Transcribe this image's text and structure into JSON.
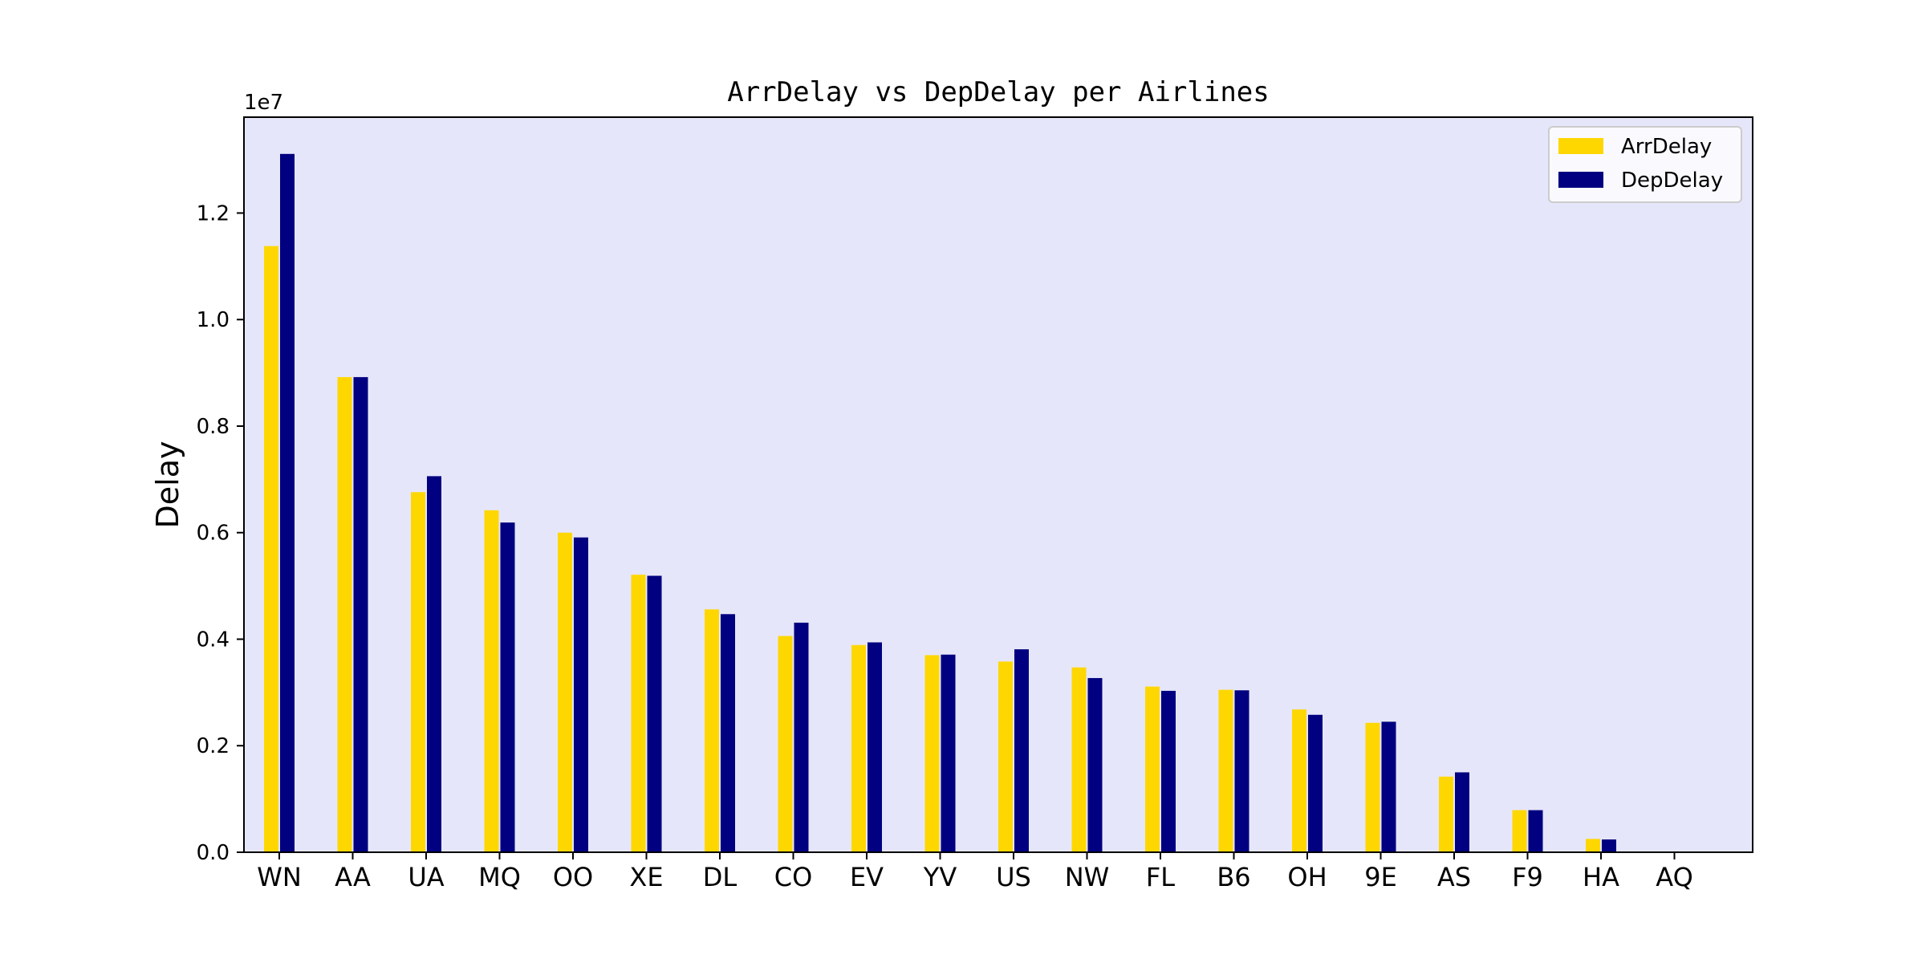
{
  "chart_data": {
    "type": "bar",
    "title": "ArrDelay vs DepDelay per Airlines",
    "xlabel": "",
    "ylabel": "Delay",
    "offset_label": "1e7",
    "ylim": [
      0,
      13800000
    ],
    "yticks": [
      0,
      2000000,
      4000000,
      6000000,
      8000000,
      10000000,
      12000000
    ],
    "ytick_labels": [
      "0.0",
      "0.2",
      "0.4",
      "0.6",
      "0.8",
      "1.0",
      "1.2"
    ],
    "grid": false,
    "legend_position": "top-right",
    "background_color": "#e6e6fa",
    "categories": [
      "WN",
      "AA",
      "UA",
      "MQ",
      "OO",
      "XE",
      "DL",
      "CO",
      "EV",
      "YV",
      "US",
      "NW",
      "FL",
      "B6",
      "OH",
      "9E",
      "AS",
      "F9",
      "HA",
      "AQ"
    ],
    "series": [
      {
        "name": "ArrDelay",
        "color": "#ffd700",
        "values": [
          11380000,
          8920000,
          6760000,
          6420000,
          6000000,
          5210000,
          4560000,
          4060000,
          3890000,
          3700000,
          3580000,
          3470000,
          3110000,
          3050000,
          2680000,
          2430000,
          1420000,
          790000,
          250000,
          0
        ]
      },
      {
        "name": "DepDelay",
        "color": "#000080",
        "values": [
          13110000,
          8920000,
          7060000,
          6190000,
          5910000,
          5190000,
          4470000,
          4310000,
          3940000,
          3710000,
          3810000,
          3270000,
          3030000,
          3040000,
          2580000,
          2450000,
          1500000,
          790000,
          240000,
          0
        ]
      }
    ]
  }
}
